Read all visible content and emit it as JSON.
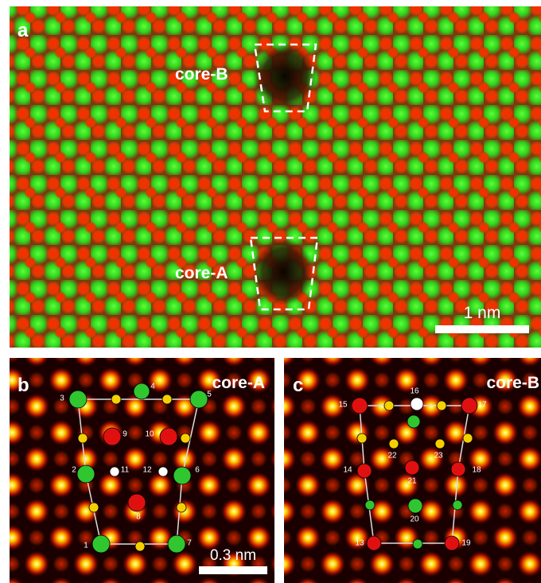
{
  "panel_a": {
    "label": "a",
    "annotations": [
      "core-B",
      "core-A"
    ],
    "scale_bar": "1 nm"
  },
  "panel_b": {
    "label": "b",
    "title": "core-A",
    "scale_bar": "0.3 nm",
    "atom_labels": [
      "1",
      "2",
      "3",
      "4",
      "5",
      "6",
      "7",
      "8",
      "9",
      "10",
      "11",
      "12"
    ]
  },
  "panel_c": {
    "label": "c",
    "title": "core-B",
    "atom_labels": [
      "13",
      "14",
      "15",
      "16",
      "17",
      "18",
      "19",
      "20",
      "21",
      "22",
      "23"
    ]
  }
}
